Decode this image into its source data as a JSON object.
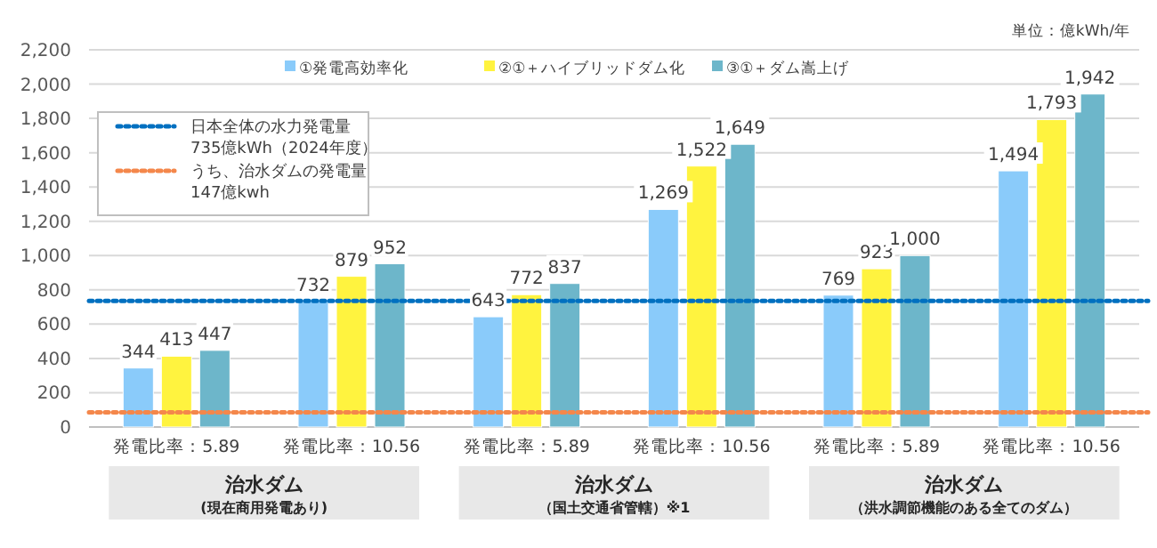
{
  "chart_data": {
    "type": "bar",
    "categories": [
      "発電比率：5.89",
      "発電比率：10.56",
      "発電比率：5.89",
      "発電比率：10.56",
      "発電比率：5.89",
      "発電比率：10.56"
    ],
    "series": [
      {
        "name": "①発電高効率化",
        "color": "#8acbfa",
        "values": [
          344,
          732,
          643,
          1269,
          769,
          1494
        ],
        "value_labels": [
          "344",
          "732",
          "643",
          "1,269",
          "769",
          "1,494"
        ]
      },
      {
        "name": "②①＋ハイブリッドダム化",
        "color": "#fff33f",
        "values": [
          413,
          879,
          772,
          1522,
          923,
          1793
        ],
        "value_labels": [
          "413",
          "879",
          "772",
          "1,522",
          "923",
          "1,793"
        ]
      },
      {
        "name": "③①＋ダム嵩上げ",
        "color": "#6db6ca",
        "values": [
          447,
          952,
          837,
          1649,
          1000,
          1942
        ],
        "value_labels": [
          "447",
          "952",
          "837",
          "1,649",
          "1,000",
          "1,942"
        ]
      }
    ],
    "ylim": [
      0,
      2200
    ],
    "yticks": [
      0,
      200,
      400,
      600,
      800,
      {
        "value": 1000,
        "label": "1,000"
      },
      {
        "value": 1200,
        "label": "1,200"
      },
      {
        "value": 1400,
        "label": "1,400"
      },
      {
        "value": 1600,
        "label": "1,600"
      },
      {
        "value": 1800,
        "label": "1,800"
      },
      {
        "value": 2000,
        "label": "2,000"
      },
      {
        "value": 2200,
        "label": "2,200"
      }
    ],
    "grid": "y",
    "legend": "top",
    "ref_lines": [
      {
        "axis": "y",
        "value": 735,
        "label": "日本全体の水力発電量\n735億kWh（2024年度）",
        "color": "#0070c0",
        "line_style": "dotted"
      },
      {
        "axis": "y",
        "value": 85,
        "label": "うち、治水ダムの発電量\n147億kwh",
        "color": "#f4874b",
        "line_style": "dotted"
      }
    ],
    "annotations": [
      "単位：億kWh/年",
      "治水ダム",
      "(現在商用発電あり)",
      "治水ダム",
      "（国土交通省管轄）※1",
      "治水ダム",
      "（洪水調節機能のある全てのダム）"
    ]
  }
}
